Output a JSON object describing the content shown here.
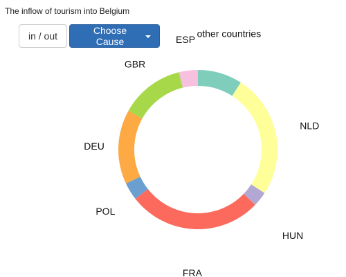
{
  "title": "The inflow of tourism into Belgium",
  "controls": {
    "direction_label": "in / out",
    "cause_label": "Choose Cause",
    "cause_color": "#2f6db5"
  },
  "chart_data": {
    "type": "pie",
    "donut": true,
    "title": "",
    "legend": "none",
    "categories": [
      "other countries",
      "NLD",
      "HUN",
      "FRA",
      "POL",
      "DEU",
      "GBR",
      "ESP"
    ],
    "values": [
      9,
      25,
      3,
      27,
      3.6,
      15,
      13,
      3.8
    ],
    "colors": [
      "#7fcdbb",
      "#ffff99",
      "#b3a8d4",
      "#fb6a5c",
      "#6a9fcf",
      "#fdaa44",
      "#a6d84a",
      "#f7c0de"
    ]
  }
}
